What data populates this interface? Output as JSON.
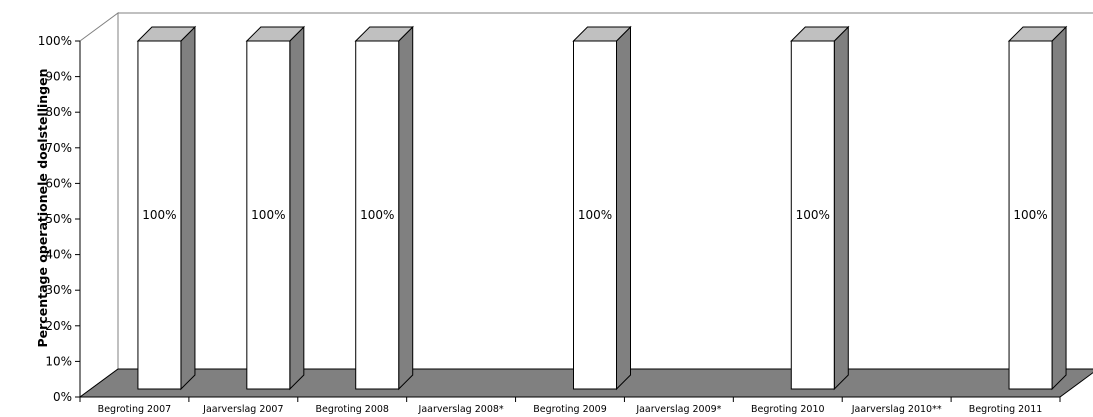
{
  "chart_data": {
    "type": "bar",
    "style": "3d-column",
    "categories": [
      "Begroting 2007",
      "Jaarverslag 2007",
      "Begroting 2008",
      "Jaarverslag 2008*",
      "Begroting 2009",
      "Jaarverslag 2009*",
      "Begroting 2010",
      "Jaarverslag 2010**",
      "Begroting 2011"
    ],
    "values": [
      100,
      100,
      100,
      null,
      100,
      null,
      100,
      null,
      100
    ],
    "data_labels": [
      "100%",
      "100%",
      "100%",
      "",
      "100%",
      "",
      "100%",
      "",
      "100%"
    ],
    "yticks": [
      "0%",
      "10%",
      "20%",
      "30%",
      "40%",
      "50%",
      "60%",
      "70%",
      "80%",
      "90%",
      "100%"
    ],
    "ylabel": "Percentage operationele doelstellingen",
    "xlabel": "",
    "ylim": [
      0,
      100
    ],
    "grid": false,
    "legend": "none"
  },
  "colors": {
    "bar_front": "#ffffff",
    "bar_side": "#808080",
    "bar_top": "#c0c0c0",
    "floor": "#808080",
    "outline": "#000000"
  }
}
